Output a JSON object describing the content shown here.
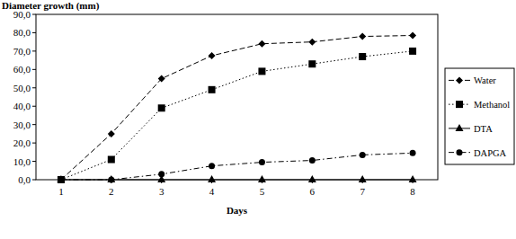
{
  "chart_data": {
    "type": "line",
    "y_label": "Diameter growth (mm)",
    "x_label": "Days",
    "x": [
      1,
      2,
      3,
      4,
      5,
      6,
      7,
      8
    ],
    "xlim": [
      0.5,
      8.5
    ],
    "xticks": [
      1,
      2,
      3,
      4,
      5,
      6,
      7,
      8
    ],
    "ylim": [
      0,
      90
    ],
    "yticks": [
      {
        "value": 0,
        "label": "0,0"
      },
      {
        "value": 10,
        "label": "10,0"
      },
      {
        "value": 20,
        "label": "20,0"
      },
      {
        "value": 30,
        "label": "30,0"
      },
      {
        "value": 40,
        "label": "40,0"
      },
      {
        "value": 50,
        "label": "50,0"
      },
      {
        "value": 60,
        "label": "60,0"
      },
      {
        "value": 70,
        "label": "70,0"
      },
      {
        "value": 80,
        "label": "80,0"
      },
      {
        "value": 90,
        "label": "90,0"
      }
    ],
    "grid": false,
    "legend": "right",
    "series": [
      {
        "name": "Water",
        "color": "#000000",
        "marker": "diamond",
        "line_style": "dashed",
        "values": [
          0,
          25,
          55,
          67.5,
          74,
          75,
          78,
          78.5
        ]
      },
      {
        "name": "Methanol",
        "color": "#000000",
        "marker": "square",
        "line_style": "dotted",
        "values": [
          0,
          11,
          39,
          49,
          59,
          63,
          67,
          70
        ]
      },
      {
        "name": "DTA",
        "color": "#000000",
        "marker": "triangle",
        "line_style": "solid",
        "values": [
          0,
          0,
          0,
          0,
          0,
          0,
          0,
          0
        ]
      },
      {
        "name": "DAPGA",
        "color": "#000000",
        "marker": "circle",
        "line_style": "dashdot",
        "values": [
          0,
          0,
          3,
          7.5,
          9.5,
          10.5,
          13.5,
          14.5
        ]
      }
    ]
  }
}
